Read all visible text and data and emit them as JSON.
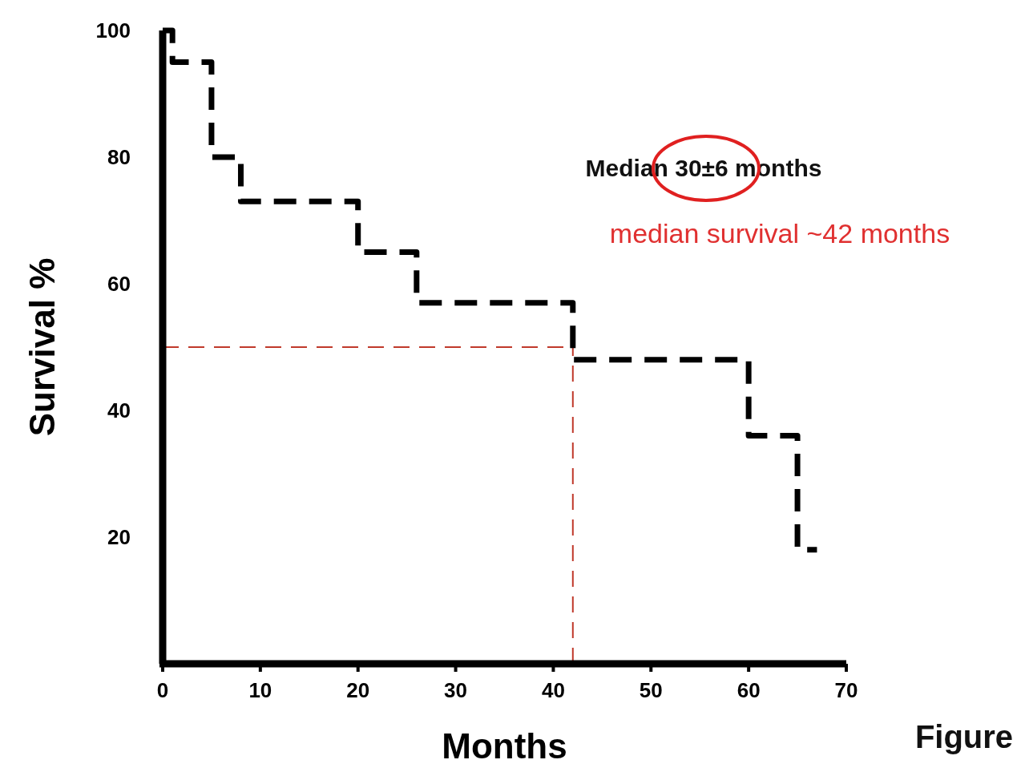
{
  "chart_data": {
    "type": "step",
    "xlabel": "Months",
    "ylabel": "Survival %",
    "x": [
      0,
      1,
      5,
      8,
      20,
      26,
      42,
      60,
      65,
      67
    ],
    "series": [
      {
        "color": "#000000",
        "values": [
          100,
          95,
          80,
          73,
          65,
          57,
          48,
          36,
          18,
          18
        ]
      }
    ],
    "xlim": [
      0,
      70
    ],
    "ylim": [
      0,
      100
    ],
    "xticks": [
      0,
      10,
      20,
      30,
      40,
      50,
      60,
      70
    ],
    "yticks": [
      20,
      40,
      60,
      80,
      100
    ],
    "line_style": "dashed",
    "marker": "none",
    "grid": false,
    "ref_lines": [
      {
        "axis": "y",
        "value": 50,
        "color": "#c0392b",
        "line_style": "dashed"
      },
      {
        "axis": "x",
        "value": 42,
        "color": "#c0392b",
        "line_style": "dashed"
      }
    ],
    "annotations": [
      "Median 30±6 months",
      "median survival ~42 months",
      "Figure"
    ]
  }
}
